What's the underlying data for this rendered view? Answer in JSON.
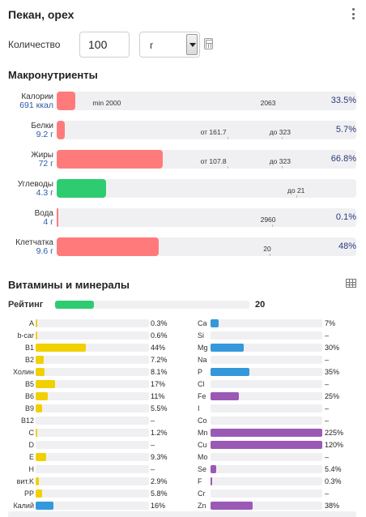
{
  "header": {
    "title": "Пекан, орех"
  },
  "quantity": {
    "label": "Количество",
    "value": "100",
    "unit": "г"
  },
  "macro_section": {
    "title": "Макронутриенты"
  },
  "macros": [
    {
      "name": "Калории",
      "amount": "691 ккал",
      "fill": 0.062,
      "color": "#ff7b7b",
      "markers": [
        {
          "text": "min 2000",
          "at": 0.12
        },
        {
          "text": "2063",
          "at": 0.68
        }
      ],
      "ticks": [],
      "percent": "33.5%"
    },
    {
      "name": "Белки",
      "amount": "9.2 г",
      "fill": 0.028,
      "color": "#ff7b7b",
      "markers": [
        {
          "text": "от 161.7",
          "at": 0.48
        },
        {
          "text": "до 323",
          "at": 0.71
        }
      ],
      "ticks": [
        0.57,
        0.75
      ],
      "percent": "5.7%"
    },
    {
      "name": "Жиры",
      "amount": "72 г",
      "fill": 0.355,
      "color": "#ff7b7b",
      "markers": [
        {
          "text": "от 107.8",
          "at": 0.48
        },
        {
          "text": "до 323",
          "at": 0.71
        }
      ],
      "ticks": [
        0.57,
        0.75
      ],
      "percent": "66.8%"
    },
    {
      "name": "Углеводы",
      "amount": "4.3 г",
      "fill": 0.165,
      "color": "#2ecc71",
      "markers": [
        {
          "text": "до 21",
          "at": 0.77
        }
      ],
      "ticks": [
        0.8
      ],
      "percent": ""
    },
    {
      "name": "Вода",
      "amount": "4 г",
      "fill": 0.003,
      "color": "#ff7b7b",
      "markers": [
        {
          "text": "2960",
          "at": 0.68
        }
      ],
      "ticks": [
        0.72
      ],
      "percent": "0.1%"
    },
    {
      "name": "Клетчатка",
      "amount": "9.6 г",
      "fill": 0.34,
      "color": "#ff7b7b",
      "markers": [
        {
          "text": "20",
          "at": 0.69
        }
      ],
      "ticks": [
        0.71
      ],
      "percent": "48%"
    }
  ],
  "vitamins_section": {
    "title": "Витамины и минералы"
  },
  "rating": {
    "label": "Рейтинг",
    "value": "20",
    "fill": 0.2
  },
  "vitamins": [
    {
      "name": "A",
      "pct": "0.3%",
      "fill": 0.003
    },
    {
      "name": "b-car",
      "pct": "0.6%",
      "fill": 0.006
    },
    {
      "name": "B1",
      "pct": "44%",
      "fill": 0.44
    },
    {
      "name": "B2",
      "pct": "7.2%",
      "fill": 0.072
    },
    {
      "name": "Холин",
      "pct": "8.1%",
      "fill": 0.081
    },
    {
      "name": "B5",
      "pct": "17%",
      "fill": 0.17
    },
    {
      "name": "B6",
      "pct": "11%",
      "fill": 0.11
    },
    {
      "name": "B9",
      "pct": "5.5%",
      "fill": 0.055
    },
    {
      "name": "B12",
      "pct": "–",
      "fill": 0
    },
    {
      "name": "C",
      "pct": "1.2%",
      "fill": 0.012
    },
    {
      "name": "D",
      "pct": "–",
      "fill": 0
    },
    {
      "name": "E",
      "pct": "9.3%",
      "fill": 0.093
    },
    {
      "name": "H",
      "pct": "–",
      "fill": 0
    },
    {
      "name": "вит.K",
      "pct": "2.9%",
      "fill": 0.029
    },
    {
      "name": "PP",
      "pct": "5.8%",
      "fill": 0.058
    },
    {
      "name": "Калий",
      "pct": "16%",
      "fill": 0.16,
      "color": "#3498db"
    }
  ],
  "minerals": [
    {
      "name": "Ca",
      "pct": "7%",
      "fill": 0.07,
      "color": "#3498db"
    },
    {
      "name": "Si",
      "pct": "–",
      "fill": 0,
      "color": "#3498db"
    },
    {
      "name": "Mg",
      "pct": "30%",
      "fill": 0.3,
      "color": "#3498db"
    },
    {
      "name": "Na",
      "pct": "–",
      "fill": 0,
      "color": "#3498db"
    },
    {
      "name": "P",
      "pct": "35%",
      "fill": 0.35,
      "color": "#3498db"
    },
    {
      "name": "Cl",
      "pct": "–",
      "fill": 0,
      "color": "#3498db"
    },
    {
      "name": "Fe",
      "pct": "25%",
      "fill": 0.25,
      "color": "#9b59b6"
    },
    {
      "name": "I",
      "pct": "–",
      "fill": 0,
      "color": "#9b59b6"
    },
    {
      "name": "Co",
      "pct": "–",
      "fill": 0,
      "color": "#9b59b6"
    },
    {
      "name": "Mn",
      "pct": "225%",
      "fill": 1.0,
      "color": "#9b59b6"
    },
    {
      "name": "Cu",
      "pct": "120%",
      "fill": 1.0,
      "color": "#9b59b6"
    },
    {
      "name": "Mo",
      "pct": "–",
      "fill": 0,
      "color": "#9b59b6"
    },
    {
      "name": "Se",
      "pct": "5.4%",
      "fill": 0.054,
      "color": "#9b59b6"
    },
    {
      "name": "F",
      "pct": "0.3%",
      "fill": 0.003,
      "color": "#9b59b6"
    },
    {
      "name": "Cr",
      "pct": "–",
      "fill": 0,
      "color": "#9b59b6"
    },
    {
      "name": "Zn",
      "pct": "38%",
      "fill": 0.38,
      "color": "#9b59b6"
    }
  ],
  "colors": {
    "vitamin": "#f1d000",
    "potassium": "#3498db",
    "mineral_blue": "#3498db",
    "mineral_purple": "#9b59b6",
    "rating": "#2ecc71",
    "over": "#ff7b7b",
    "ok": "#2ecc71"
  }
}
